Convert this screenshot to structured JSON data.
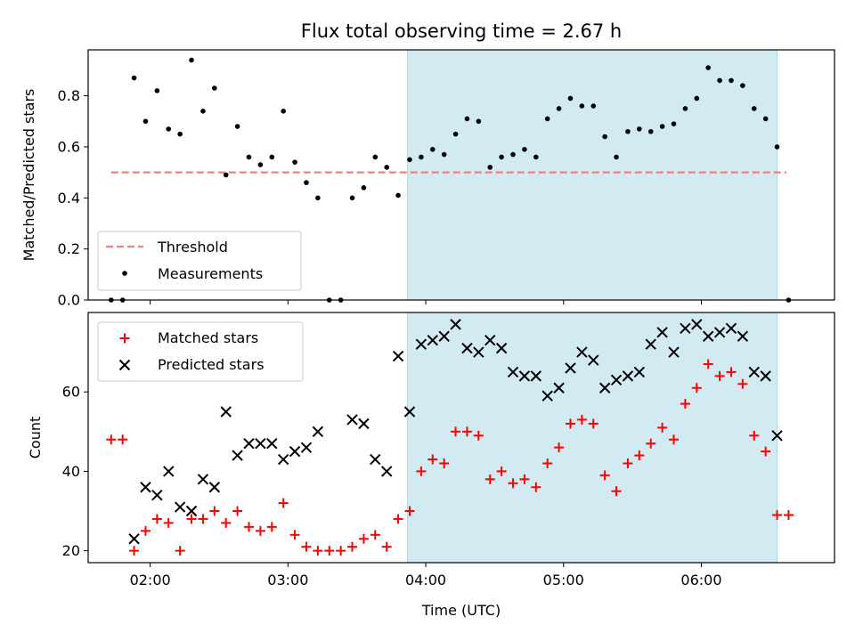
{
  "chart_data": [
    {
      "type": "scatter",
      "title": "Flux total observing time = 2.67 h",
      "ylabel": "Matched/Predicted stars",
      "xlabel": "",
      "x_unit": "hours UTC",
      "xlim": [
        "01:33",
        "06:58"
      ],
      "ylim": [
        0,
        0.98
      ],
      "yticks": [
        "0.0",
        "0.2",
        "0.4",
        "0.6",
        "0.8"
      ],
      "shaded_region": {
        "from": "03:52",
        "to": "06:33",
        "color": "#add8e6"
      },
      "legend": {
        "placement": "lower-left",
        "entries": [
          "Threshold",
          "Measurements"
        ]
      },
      "threshold": {
        "name": "Threshold",
        "value": 0.5,
        "x_from": "01:43",
        "x_to": "06:37",
        "color": "#f08080",
        "style": "dashed"
      },
      "series": [
        {
          "name": "Measurements",
          "color": "#000000",
          "marker": "dot",
          "points": [
            [
              "01:43",
              0.0
            ],
            [
              "01:48",
              0.0
            ],
            [
              "01:53",
              0.87
            ],
            [
              "01:58",
              0.7
            ],
            [
              "02:03",
              0.82
            ],
            [
              "02:08",
              0.67
            ],
            [
              "02:13",
              0.65
            ],
            [
              "02:18",
              0.94
            ],
            [
              "02:23",
              0.74
            ],
            [
              "02:28",
              0.83
            ],
            [
              "02:33",
              0.49
            ],
            [
              "02:38",
              0.68
            ],
            [
              "02:43",
              0.56
            ],
            [
              "02:48",
              0.53
            ],
            [
              "02:53",
              0.56
            ],
            [
              "02:58",
              0.74
            ],
            [
              "03:03",
              0.54
            ],
            [
              "03:08",
              0.46
            ],
            [
              "03:13",
              0.4
            ],
            [
              "03:18",
              0.0
            ],
            [
              "03:23",
              0.0
            ],
            [
              "03:28",
              0.4
            ],
            [
              "03:33",
              0.44
            ],
            [
              "03:38",
              0.56
            ],
            [
              "03:43",
              0.52
            ],
            [
              "03:48",
              0.41
            ],
            [
              "03:53",
              0.55
            ],
            [
              "03:58",
              0.56
            ],
            [
              "04:03",
              0.59
            ],
            [
              "04:08",
              0.57
            ],
            [
              "04:13",
              0.65
            ],
            [
              "04:18",
              0.71
            ],
            [
              "04:23",
              0.7
            ],
            [
              "04:28",
              0.52
            ],
            [
              "04:33",
              0.56
            ],
            [
              "04:38",
              0.57
            ],
            [
              "04:43",
              0.59
            ],
            [
              "04:48",
              0.56
            ],
            [
              "04:53",
              0.71
            ],
            [
              "04:58",
              0.75
            ],
            [
              "05:03",
              0.79
            ],
            [
              "05:08",
              0.76
            ],
            [
              "05:13",
              0.76
            ],
            [
              "05:18",
              0.64
            ],
            [
              "05:23",
              0.56
            ],
            [
              "05:28",
              0.66
            ],
            [
              "05:33",
              0.67
            ],
            [
              "05:38",
              0.66
            ],
            [
              "05:43",
              0.68
            ],
            [
              "05:48",
              0.69
            ],
            [
              "05:53",
              0.75
            ],
            [
              "05:58",
              0.79
            ],
            [
              "06:03",
              0.91
            ],
            [
              "06:08",
              0.86
            ],
            [
              "06:13",
              0.86
            ],
            [
              "06:18",
              0.84
            ],
            [
              "06:23",
              0.75
            ],
            [
              "06:28",
              0.71
            ],
            [
              "06:33",
              0.6
            ],
            [
              "06:38",
              0.0
            ]
          ]
        }
      ]
    },
    {
      "type": "scatter",
      "title": "",
      "ylabel": "Count",
      "xlabel": "Time (UTC)",
      "x_unit": "hours UTC",
      "xlim": [
        "01:33",
        "06:58"
      ],
      "ylim": [
        17,
        80
      ],
      "yticks": [
        "20",
        "40",
        "60"
      ],
      "xticks": [
        "02:00",
        "03:00",
        "04:00",
        "05:00",
        "06:00"
      ],
      "shaded_region": {
        "from": "03:52",
        "to": "06:33",
        "color": "#add8e6"
      },
      "legend": {
        "placement": "upper-left",
        "entries": [
          "Matched stars",
          "Predicted stars"
        ]
      },
      "series": [
        {
          "name": "Matched stars",
          "color": "#ff0000",
          "marker": "plus",
          "points": [
            [
              "01:43",
              48
            ],
            [
              "01:48",
              48
            ],
            [
              "01:53",
              20
            ],
            [
              "01:58",
              25
            ],
            [
              "02:03",
              28
            ],
            [
              "02:08",
              27
            ],
            [
              "02:13",
              20
            ],
            [
              "02:18",
              28
            ],
            [
              "02:23",
              28
            ],
            [
              "02:28",
              30
            ],
            [
              "02:33",
              27
            ],
            [
              "02:38",
              30
            ],
            [
              "02:43",
              26
            ],
            [
              "02:48",
              25
            ],
            [
              "02:53",
              26
            ],
            [
              "02:58",
              32
            ],
            [
              "03:03",
              24
            ],
            [
              "03:08",
              21
            ],
            [
              "03:13",
              20
            ],
            [
              "03:18",
              20
            ],
            [
              "03:23",
              20
            ],
            [
              "03:28",
              21
            ],
            [
              "03:33",
              23
            ],
            [
              "03:38",
              24
            ],
            [
              "03:43",
              21
            ],
            [
              "03:48",
              28
            ],
            [
              "03:53",
              30
            ],
            [
              "03:58",
              40
            ],
            [
              "04:03",
              43
            ],
            [
              "04:08",
              42
            ],
            [
              "04:13",
              50
            ],
            [
              "04:18",
              50
            ],
            [
              "04:23",
              49
            ],
            [
              "04:28",
              38
            ],
            [
              "04:33",
              40
            ],
            [
              "04:38",
              37
            ],
            [
              "04:43",
              38
            ],
            [
              "04:48",
              36
            ],
            [
              "04:53",
              42
            ],
            [
              "04:58",
              46
            ],
            [
              "05:03",
              52
            ],
            [
              "05:08",
              53
            ],
            [
              "05:13",
              52
            ],
            [
              "05:18",
              39
            ],
            [
              "05:23",
              35
            ],
            [
              "05:28",
              42
            ],
            [
              "05:33",
              44
            ],
            [
              "05:38",
              47
            ],
            [
              "05:43",
              51
            ],
            [
              "05:48",
              48
            ],
            [
              "05:53",
              57
            ],
            [
              "05:58",
              61
            ],
            [
              "06:03",
              67
            ],
            [
              "06:08",
              64
            ],
            [
              "06:13",
              65
            ],
            [
              "06:18",
              62
            ],
            [
              "06:23",
              49
            ],
            [
              "06:28",
              45
            ],
            [
              "06:33",
              29
            ],
            [
              "06:38",
              29
            ]
          ]
        },
        {
          "name": "Predicted stars",
          "color": "#000000",
          "marker": "x",
          "points": [
            [
              "01:53",
              23
            ],
            [
              "01:58",
              36
            ],
            [
              "02:03",
              34
            ],
            [
              "02:08",
              40
            ],
            [
              "02:13",
              31
            ],
            [
              "02:18",
              30
            ],
            [
              "02:23",
              38
            ],
            [
              "02:28",
              36
            ],
            [
              "02:33",
              55
            ],
            [
              "02:38",
              44
            ],
            [
              "02:43",
              47
            ],
            [
              "02:48",
              47
            ],
            [
              "02:53",
              47
            ],
            [
              "02:58",
              43
            ],
            [
              "03:03",
              45
            ],
            [
              "03:08",
              46
            ],
            [
              "03:13",
              50
            ],
            [
              "03:28",
              53
            ],
            [
              "03:33",
              52
            ],
            [
              "03:38",
              43
            ],
            [
              "03:43",
              40
            ],
            [
              "03:48",
              69
            ],
            [
              "03:53",
              55
            ],
            [
              "03:58",
              72
            ],
            [
              "04:03",
              73
            ],
            [
              "04:08",
              74
            ],
            [
              "04:13",
              77
            ],
            [
              "04:18",
              71
            ],
            [
              "04:23",
              70
            ],
            [
              "04:28",
              73
            ],
            [
              "04:33",
              71
            ],
            [
              "04:38",
              65
            ],
            [
              "04:43",
              64
            ],
            [
              "04:48",
              64
            ],
            [
              "04:53",
              59
            ],
            [
              "04:58",
              61
            ],
            [
              "05:03",
              66
            ],
            [
              "05:08",
              70
            ],
            [
              "05:13",
              68
            ],
            [
              "05:18",
              61
            ],
            [
              "05:23",
              63
            ],
            [
              "05:28",
              64
            ],
            [
              "05:33",
              65
            ],
            [
              "05:38",
              72
            ],
            [
              "05:43",
              75
            ],
            [
              "05:48",
              70
            ],
            [
              "05:53",
              76
            ],
            [
              "05:58",
              77
            ],
            [
              "06:03",
              74
            ],
            [
              "06:08",
              75
            ],
            [
              "06:13",
              76
            ],
            [
              "06:18",
              74
            ],
            [
              "06:23",
              65
            ],
            [
              "06:28",
              64
            ],
            [
              "06:33",
              49
            ]
          ]
        }
      ]
    }
  ]
}
